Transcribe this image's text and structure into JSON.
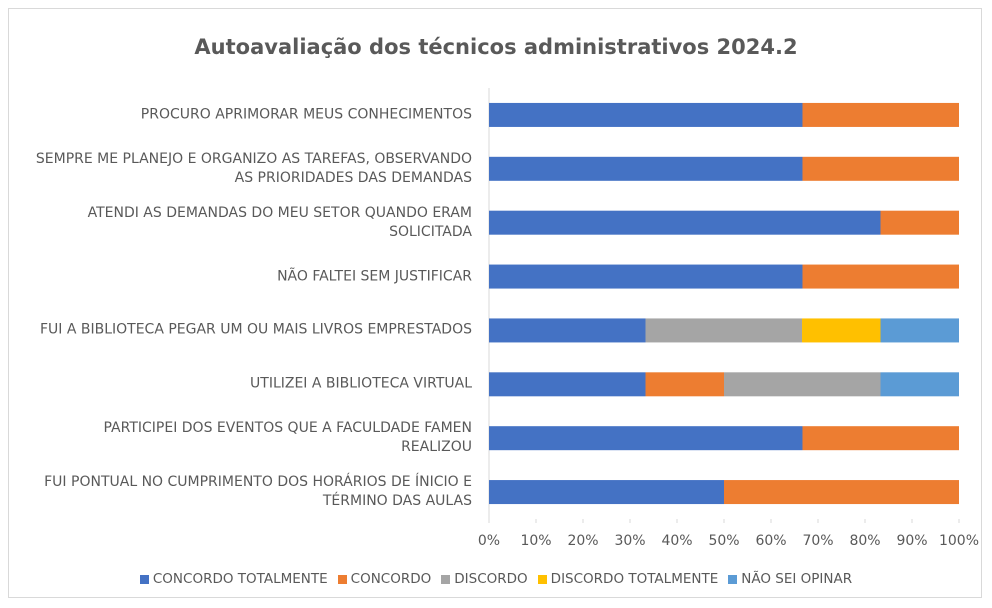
{
  "chart_data": {
    "type": "stacked_barh",
    "title": "Autoavaliação dos técnicos administrativos 2024.2",
    "categories": [
      "PROCURO APRIMORAR MEUS CONHECIMENTOS",
      "SEMPRE ME PLANEJO E ORGANIZO AS TAREFAS, OBSERVANDO AS PRIORIDADES DAS DEMANDAS",
      "ATENDI AS DEMANDAS DO MEU SETOR QUANDO ERAM SOLICITADA",
      "NÃO FALTEI SEM JUSTIFICAR",
      "FUI A BIBLIOTECA PEGAR UM OU MAIS LIVROS EMPRESTADOS",
      "UTILIZEI A BIBLIOTECA VIRTUAL",
      "PARTICIPEI DOS EVENTOS QUE A FACULDADE FAMEN REALIZOU",
      "FUI PONTUAL NO CUMPRIMENTO DOS HORÁRIOS DE ÍNICIO E TÉRMINO DAS AULAS"
    ],
    "series": [
      {
        "name": "CONCORDO TOTALMENTE",
        "color": "#4472c4",
        "values": [
          66.7,
          66.7,
          83.3,
          66.7,
          33.3,
          33.3,
          66.7,
          50
        ]
      },
      {
        "name": "CONCORDO",
        "color": "#ed7d31",
        "values": [
          33.3,
          33.3,
          16.7,
          33.3,
          0,
          16.7,
          33.3,
          50
        ]
      },
      {
        "name": "DISCORDO",
        "color": "#a5a5a5",
        "values": [
          0,
          0,
          0,
          0,
          33.3,
          33.3,
          0,
          0
        ]
      },
      {
        "name": "DISCORDO TOTALMENTE",
        "color": "#ffc000",
        "values": [
          0,
          0,
          0,
          0,
          16.7,
          0,
          0,
          0
        ]
      },
      {
        "name": "NÃO SEI OPINAR",
        "color": "#5b9bd5",
        "values": [
          0,
          0,
          0,
          0,
          16.7,
          16.7,
          0,
          0
        ]
      }
    ],
    "xlim": [
      0,
      100
    ],
    "xticks": [
      {
        "value": 0,
        "label": "0%"
      },
      {
        "value": 10,
        "label": "10%"
      },
      {
        "value": 20,
        "label": "20%"
      },
      {
        "value": 30,
        "label": "30%"
      },
      {
        "value": 40,
        "label": "40%"
      },
      {
        "value": 50,
        "label": "50%"
      },
      {
        "value": 60,
        "label": "60%"
      },
      {
        "value": 70,
        "label": "70%"
      },
      {
        "value": 80,
        "label": "80%"
      },
      {
        "value": 90,
        "label": "90%"
      },
      {
        "value": 100,
        "label": "100%"
      }
    ],
    "legend": "bottom"
  }
}
